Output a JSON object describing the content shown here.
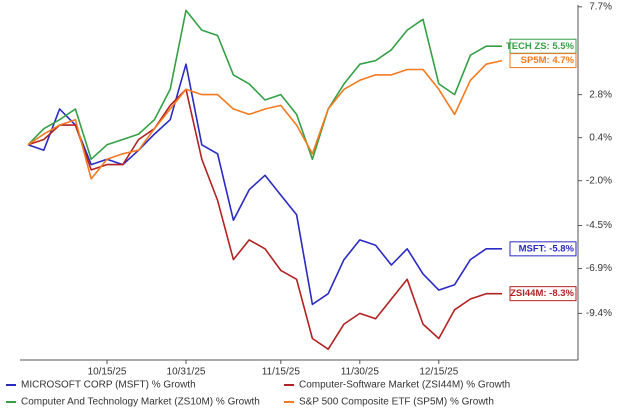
{
  "chart_data": {
    "type": "line",
    "categories": [
      null,
      null,
      null,
      null,
      null,
      "10/15/25",
      null,
      null,
      null,
      null,
      "10/31/25",
      null,
      null,
      null,
      null,
      null,
      "11/15/25",
      null,
      null,
      null,
      null,
      "11/30/25",
      null,
      null,
      null,
      null,
      "12/15/25",
      null,
      null,
      null,
      null
    ],
    "ylim": [
      -12.0,
      7.8
    ],
    "yticks": [
      {
        "value": 7.7,
        "label": "7.7%"
      },
      {
        "value": 2.8,
        "label": "2.8%"
      },
      {
        "value": 0.4,
        "label": "0.4%"
      },
      {
        "value": -2.0,
        "label": "-2.0%"
      },
      {
        "value": -4.5,
        "label": "-4.5%"
      },
      {
        "value": -6.9,
        "label": "-6.9%"
      },
      {
        "value": -9.4,
        "label": "-9.4%"
      }
    ],
    "series": [
      {
        "name": "MICROSOFT CORP (MSFT) % Growth",
        "color": "#2a2ac4",
        "end_label": "MSFT: -5.8%",
        "values": [
          0.0,
          -0.3,
          2.0,
          1.1,
          -1.1,
          -0.8,
          -1.1,
          -0.3,
          0.6,
          1.4,
          4.5,
          0.0,
          -0.5,
          -4.2,
          -2.5,
          -1.7,
          -2.8,
          -3.9,
          -8.9,
          -8.3,
          -6.4,
          -5.3,
          -5.6,
          -6.7,
          -5.8,
          -7.2,
          -8.1,
          -7.8,
          -6.4,
          -5.8,
          -5.8
        ]
      },
      {
        "name": "Computer-Software Market (ZSI44M) % Growth",
        "color": "#b22222",
        "end_label": "ZSI44M: -8.3%",
        "values": [
          0.0,
          0.3,
          1.1,
          1.1,
          -1.4,
          -1.1,
          -1.1,
          0.3,
          0.9,
          2.2,
          3.1,
          -0.8,
          -3.1,
          -6.4,
          -5.3,
          -5.8,
          -7.0,
          -7.5,
          -10.8,
          -11.4,
          -10.0,
          -9.4,
          -9.7,
          -8.6,
          -7.5,
          -10.0,
          -10.8,
          -9.2,
          -8.6,
          -8.3,
          -8.3
        ]
      },
      {
        "name": "Computer And Technology Market (ZS10M) % Growth",
        "color": "#34a046",
        "end_label": "TECH ZS: 5.5%",
        "values": [
          0.0,
          0.9,
          1.4,
          2.0,
          -0.8,
          0.0,
          0.3,
          0.6,
          1.4,
          3.1,
          7.5,
          6.4,
          6.1,
          3.9,
          3.4,
          2.5,
          2.8,
          1.7,
          -0.8,
          2.0,
          3.4,
          4.5,
          4.7,
          5.3,
          6.4,
          7.0,
          3.4,
          2.8,
          5.0,
          5.5,
          5.5
        ]
      },
      {
        "name": "S&P 500 Composite ETF (SP5M) % Growth",
        "color": "#f47a20",
        "end_label": "SP5M: 4.7%",
        "values": [
          0.0,
          0.6,
          1.1,
          1.4,
          -1.9,
          -0.8,
          -0.5,
          -0.3,
          0.9,
          2.0,
          3.1,
          2.8,
          2.8,
          2.0,
          1.7,
          2.0,
          2.2,
          1.1,
          -0.5,
          2.0,
          3.1,
          3.6,
          3.9,
          3.9,
          4.2,
          4.2,
          3.1,
          1.7,
          3.6,
          4.5,
          4.7
        ]
      }
    ]
  }
}
